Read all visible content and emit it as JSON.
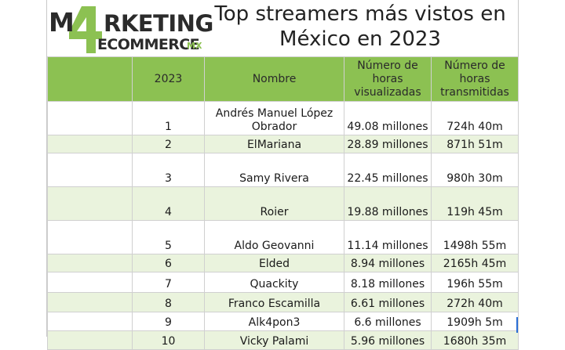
{
  "logo": {
    "line1": "M4RKETING",
    "line2": "ECOMMERCE",
    "suffix": "MX"
  },
  "title": {
    "line1": "Top streamers más vistos en",
    "line2": "México en 2023"
  },
  "table": {
    "headers": [
      "",
      "2023",
      "Nombre",
      "Número de horas visualizadas",
      "Número de horas transmitidas"
    ],
    "rows": [
      {
        "rank": "1",
        "name": "Andrés Manuel López Obrador",
        "hours_watched": "49.08 millones",
        "hours_streamed": "724h 40m"
      },
      {
        "rank": "2",
        "name": "ElMariana",
        "hours_watched": "28.89 millones",
        "hours_streamed": "871h 51m"
      },
      {
        "rank": "3",
        "name": "Samy Rivera",
        "hours_watched": "22.45 millones",
        "hours_streamed": "980h 30m"
      },
      {
        "rank": "4",
        "name": "Roier",
        "hours_watched": "19.88 millones",
        "hours_streamed": "119h 45m"
      },
      {
        "rank": "5",
        "name": "Aldo Geovanni",
        "hours_watched": "11.14 millones",
        "hours_streamed": "1498h 55m"
      },
      {
        "rank": "6",
        "name": "Elded",
        "hours_watched": "8.94 millones",
        "hours_streamed": "2165h 45m"
      },
      {
        "rank": "7",
        "name": "Quackity",
        "hours_watched": "8.18 millones",
        "hours_streamed": "196h 55m"
      },
      {
        "rank": "8",
        "name": "Franco Escamilla",
        "hours_watched": "6.61 millones",
        "hours_streamed": "272h 40m"
      },
      {
        "rank": "9",
        "name": "Alk4pon3",
        "hours_watched": "6.6 millones",
        "hours_streamed": "1909h 5m"
      },
      {
        "rank": "10",
        "name": "Vicky Palami",
        "hours_watched": "5.96 millones",
        "hours_streamed": "1680h 35m"
      }
    ]
  },
  "colors": {
    "header_green": "#8cc152",
    "alt_row": "#eaf3dd",
    "logo_dark": "#2b2b2b",
    "logo_green": "#8cc152"
  }
}
